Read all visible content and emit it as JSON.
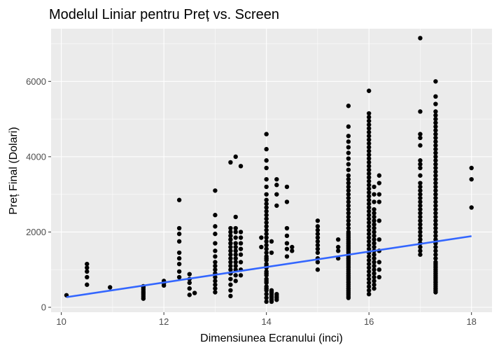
{
  "chart_data": {
    "type": "scatter",
    "title": "Modelul Liniar pentru Preț vs. Screen",
    "xlabel": "Dimensiunea Ecranului (inci)",
    "ylabel": "Preț Final (Dolari)",
    "xlim": [
      9.8,
      18.4
    ],
    "ylim": [
      -130,
      7400
    ],
    "xticks": [
      10,
      12,
      14,
      16,
      18
    ],
    "yticks": [
      0,
      2000,
      4000,
      6000
    ],
    "grid": true,
    "legend": "none",
    "colors": {
      "points": "#000000",
      "fit_line": "#3366ff",
      "panel_bg": "#ebebeb",
      "grid": "#ffffff"
    },
    "fit_line": {
      "x": [
        10.1,
        18.0
      ],
      "y": [
        270,
        1890
      ]
    },
    "series": [
      {
        "x": [
          10.1,
          10.5,
          10.5,
          10.5,
          10.5,
          10.5,
          10.95,
          11.6,
          11.6,
          11.6,
          11.6,
          11.6,
          11.6,
          11.6,
          11.6,
          12.0,
          12.0,
          12.0,
          12.3,
          12.3,
          12.3,
          12.3,
          12.3,
          12.3,
          12.3,
          12.3,
          12.3,
          12.5,
          12.5,
          12.5,
          12.5,
          12.5,
          12.6,
          13.0,
          13.0,
          13.0,
          13.0,
          13.0,
          13.0,
          13.0,
          13.0,
          13.0,
          13.0,
          13.0,
          13.0,
          13.0,
          13.0,
          13.0,
          13.0,
          13.3,
          13.3,
          13.3,
          13.3,
          13.3,
          13.3,
          13.3,
          13.3,
          13.3,
          13.3,
          13.3,
          13.3,
          13.3,
          13.3,
          13.3,
          13.3,
          13.3,
          13.3,
          13.4,
          13.4,
          13.4,
          13.4,
          13.4,
          13.4,
          13.4,
          13.4,
          13.4,
          13.4,
          13.4,
          13.4,
          13.4,
          13.4,
          13.4,
          13.5,
          13.5,
          13.5,
          13.5,
          13.5,
          13.5,
          13.5,
          13.5,
          13.5,
          13.9,
          13.9,
          14.0,
          14.0,
          14.0,
          14.0,
          14.0,
          14.0,
          14.0,
          14.0,
          14.0,
          14.0,
          14.0,
          14.0,
          14.0,
          14.0,
          14.0,
          14.0,
          14.0,
          14.0,
          14.0,
          14.0,
          14.0,
          14.0,
          14.0,
          14.0,
          14.0,
          14.0,
          14.0,
          14.0,
          14.0,
          14.0,
          14.0,
          14.0,
          14.0,
          14.0,
          14.0,
          14.0,
          14.0,
          14.0,
          14.0,
          14.0,
          14.1,
          14.1,
          14.1,
          14.1,
          14.1,
          14.1,
          14.1,
          14.1,
          14.1,
          14.2,
          14.2,
          14.2,
          14.2,
          14.2,
          14.2,
          14.2,
          14.2,
          14.4,
          14.4,
          14.4,
          14.4,
          14.4,
          14.4,
          14.4,
          14.5,
          14.5,
          15.0,
          15.0,
          15.0,
          15.0,
          15.0,
          15.0,
          15.0,
          15.0,
          15.0,
          15.0,
          15.0,
          15.0,
          15.4,
          15.4,
          15.4,
          15.4,
          15.6,
          15.6,
          15.6,
          15.6,
          15.6,
          15.6,
          15.6,
          15.6,
          15.6,
          15.6,
          15.6,
          15.6,
          15.6,
          15.6,
          15.6,
          15.6,
          15.6,
          15.6,
          15.6,
          15.6,
          15.6,
          15.6,
          15.6,
          15.6,
          15.6,
          15.6,
          15.6,
          15.6,
          15.6,
          15.6,
          15.6,
          15.6,
          15.6,
          15.6,
          15.6,
          15.6,
          15.6,
          15.6,
          15.6,
          15.6,
          15.6,
          15.6,
          15.6,
          15.6,
          15.6,
          15.6,
          15.6,
          15.6,
          15.6,
          15.6,
          15.6,
          15.6,
          15.6,
          15.6,
          15.6,
          15.6,
          15.6,
          15.6,
          15.6,
          15.6,
          16.0,
          16.0,
          16.0,
          16.0,
          16.0,
          16.0,
          16.0,
          16.0,
          16.0,
          16.0,
          16.0,
          16.0,
          16.0,
          16.0,
          16.0,
          16.0,
          16.0,
          16.0,
          16.0,
          16.0,
          16.0,
          16.0,
          16.0,
          16.0,
          16.0,
          16.0,
          16.0,
          16.0,
          16.0,
          16.0,
          16.0,
          16.0,
          16.0,
          16.0,
          16.0,
          16.0,
          16.0,
          16.0,
          16.0,
          16.0,
          16.0,
          16.0,
          16.0,
          16.0,
          16.0,
          16.0,
          16.0,
          16.0,
          16.0,
          16.0,
          16.1,
          16.1,
          16.1,
          16.1,
          16.1,
          16.1,
          16.1,
          16.1,
          16.1,
          16.1,
          16.1,
          16.1,
          16.1,
          16.1,
          16.1,
          16.1,
          16.1,
          16.1,
          16.1,
          16.1,
          16.1,
          16.1,
          16.1,
          16.1,
          16.1,
          16.2,
          16.2,
          16.2,
          16.2,
          16.2,
          16.2,
          16.2,
          16.2,
          16.2,
          16.2,
          17.0,
          17.0,
          17.0,
          17.0,
          17.0,
          17.0,
          17.0,
          17.0,
          17.0,
          17.0,
          17.0,
          17.0,
          17.0,
          17.0,
          17.0,
          17.0,
          17.0,
          17.0,
          17.0,
          17.0,
          17.0,
          17.0,
          17.0,
          17.0,
          17.0,
          17.0,
          17.0,
          17.0,
          17.0,
          17.3,
          17.3,
          17.3,
          17.3,
          17.3,
          17.3,
          17.3,
          17.3,
          17.3,
          17.3,
          17.3,
          17.3,
          17.3,
          17.3,
          17.3,
          17.3,
          17.3,
          17.3,
          17.3,
          17.3,
          17.3,
          17.3,
          17.3,
          17.3,
          17.3,
          17.3,
          17.3,
          17.3,
          17.3,
          17.3,
          17.3,
          17.3,
          17.3,
          17.3,
          17.3,
          17.3,
          17.3,
          17.3,
          17.3,
          17.3,
          17.3,
          17.3,
          17.3,
          17.3,
          17.3,
          17.3,
          17.3,
          17.3,
          17.3,
          17.3,
          17.3,
          17.3,
          17.3,
          17.3,
          17.3,
          17.3,
          17.3,
          17.3,
          17.3,
          17.3,
          18.0,
          18.0,
          18.0
        ],
        "y": [
          320,
          600,
          800,
          950,
          1050,
          1150,
          530,
          230,
          280,
          330,
          380,
          430,
          480,
          530,
          560,
          580,
          640,
          700,
          800,
          950,
          1150,
          1300,
          1450,
          1750,
          1950,
          2100,
          2850,
          330,
          500,
          650,
          750,
          880,
          380,
          400,
          500,
          600,
          700,
          800,
          900,
          1000,
          1100,
          1200,
          1350,
          1500,
          1700,
          1950,
          2150,
          2450,
          3100,
          300,
          450,
          600,
          750,
          900,
          1000,
          1100,
          1200,
          1300,
          1400,
          1500,
          1600,
          1700,
          1800,
          1900,
          2000,
          2100,
          3850,
          700,
          850,
          1000,
          1100,
          1200,
          1300,
          1400,
          1500,
          1600,
          1700,
          1850,
          2000,
          2100,
          2400,
          4000,
          850,
          1000,
          1200,
          1400,
          1550,
          1700,
          1850,
          2000,
          3750,
          1600,
          1850,
          150,
          250,
          350,
          450,
          550,
          650,
          750,
          850,
          950,
          1050,
          1150,
          1250,
          1350,
          1450,
          1550,
          1650,
          1750,
          1850,
          1950,
          2050,
          2150,
          2250,
          2350,
          2450,
          2550,
          2650,
          2750,
          2850,
          3000,
          3200,
          3400,
          3700,
          3900,
          4200,
          4600,
          500,
          700,
          900,
          1100,
          1300,
          150,
          200,
          250,
          300,
          350,
          400,
          450,
          1450,
          1750,
          200,
          250,
          300,
          350,
          2700,
          3000,
          3250,
          3400,
          1350,
          1550,
          1700,
          1900,
          2100,
          2800,
          3200,
          1500,
          1600,
          1000,
          1200,
          1300,
          1450,
          1550,
          1650,
          1750,
          1850,
          1950,
          2050,
          2150,
          2300,
          1300,
          1500,
          1600,
          1800,
          250,
          300,
          350,
          400,
          450,
          500,
          550,
          600,
          650,
          700,
          750,
          800,
          850,
          900,
          950,
          1000,
          1050,
          1100,
          1150,
          1200,
          1250,
          1300,
          1350,
          1400,
          1450,
          1500,
          1550,
          1600,
          1650,
          1700,
          1750,
          1800,
          1850,
          1900,
          1950,
          2000,
          2100,
          2200,
          2300,
          2400,
          2500,
          2600,
          2700,
          2800,
          2900,
          3000,
          3100,
          3200,
          3300,
          3400,
          3500,
          3650,
          3800,
          3950,
          4100,
          4250,
          4400,
          4550,
          4800,
          5350,
          350,
          450,
          550,
          650,
          750,
          850,
          950,
          1050,
          1150,
          1250,
          1350,
          1450,
          1550,
          1650,
          1750,
          1850,
          1950,
          2050,
          2150,
          2250,
          2350,
          2450,
          2550,
          2650,
          2750,
          2850,
          2950,
          3050,
          3150,
          3250,
          3350,
          3450,
          3550,
          3650,
          3750,
          3850,
          3950,
          4050,
          4150,
          4250,
          4350,
          4450,
          4550,
          4650,
          4750,
          4850,
          4950,
          5050,
          5150,
          5750,
          500,
          600,
          700,
          800,
          900,
          1000,
          1100,
          1200,
          1300,
          1400,
          1500,
          1600,
          1700,
          1800,
          1900,
          2000,
          2100,
          2200,
          2300,
          2400,
          2500,
          2600,
          2800,
          3000,
          3200,
          800,
          1000,
          1200,
          1500,
          1800,
          2300,
          2800,
          3000,
          3300,
          3500,
          1400,
          1500,
          1600,
          1700,
          1800,
          1900,
          2000,
          2100,
          2200,
          2300,
          2400,
          2500,
          2600,
          2700,
          2800,
          2900,
          3000,
          3100,
          3200,
          3300,
          3500,
          3700,
          3800,
          3900,
          4300,
          4500,
          4600,
          5200,
          7150,
          400,
          500,
          600,
          700,
          800,
          900,
          1000,
          1100,
          1200,
          1300,
          1400,
          1500,
          1600,
          1700,
          1800,
          1900,
          2000,
          2100,
          2200,
          2300,
          2400,
          2500,
          2600,
          2700,
          2800,
          2900,
          3000,
          3100,
          3200,
          3300,
          3400,
          3500,
          3600,
          3700,
          3800,
          3900,
          4000,
          4100,
          4200,
          4300,
          4400,
          4500,
          4600,
          4700,
          4800,
          4900,
          5000,
          5100,
          5200,
          5400,
          5600,
          6000,
          450,
          550,
          650,
          750,
          850,
          950,
          1050,
          1150,
          2650,
          3400,
          3700
        ]
      }
    ]
  }
}
